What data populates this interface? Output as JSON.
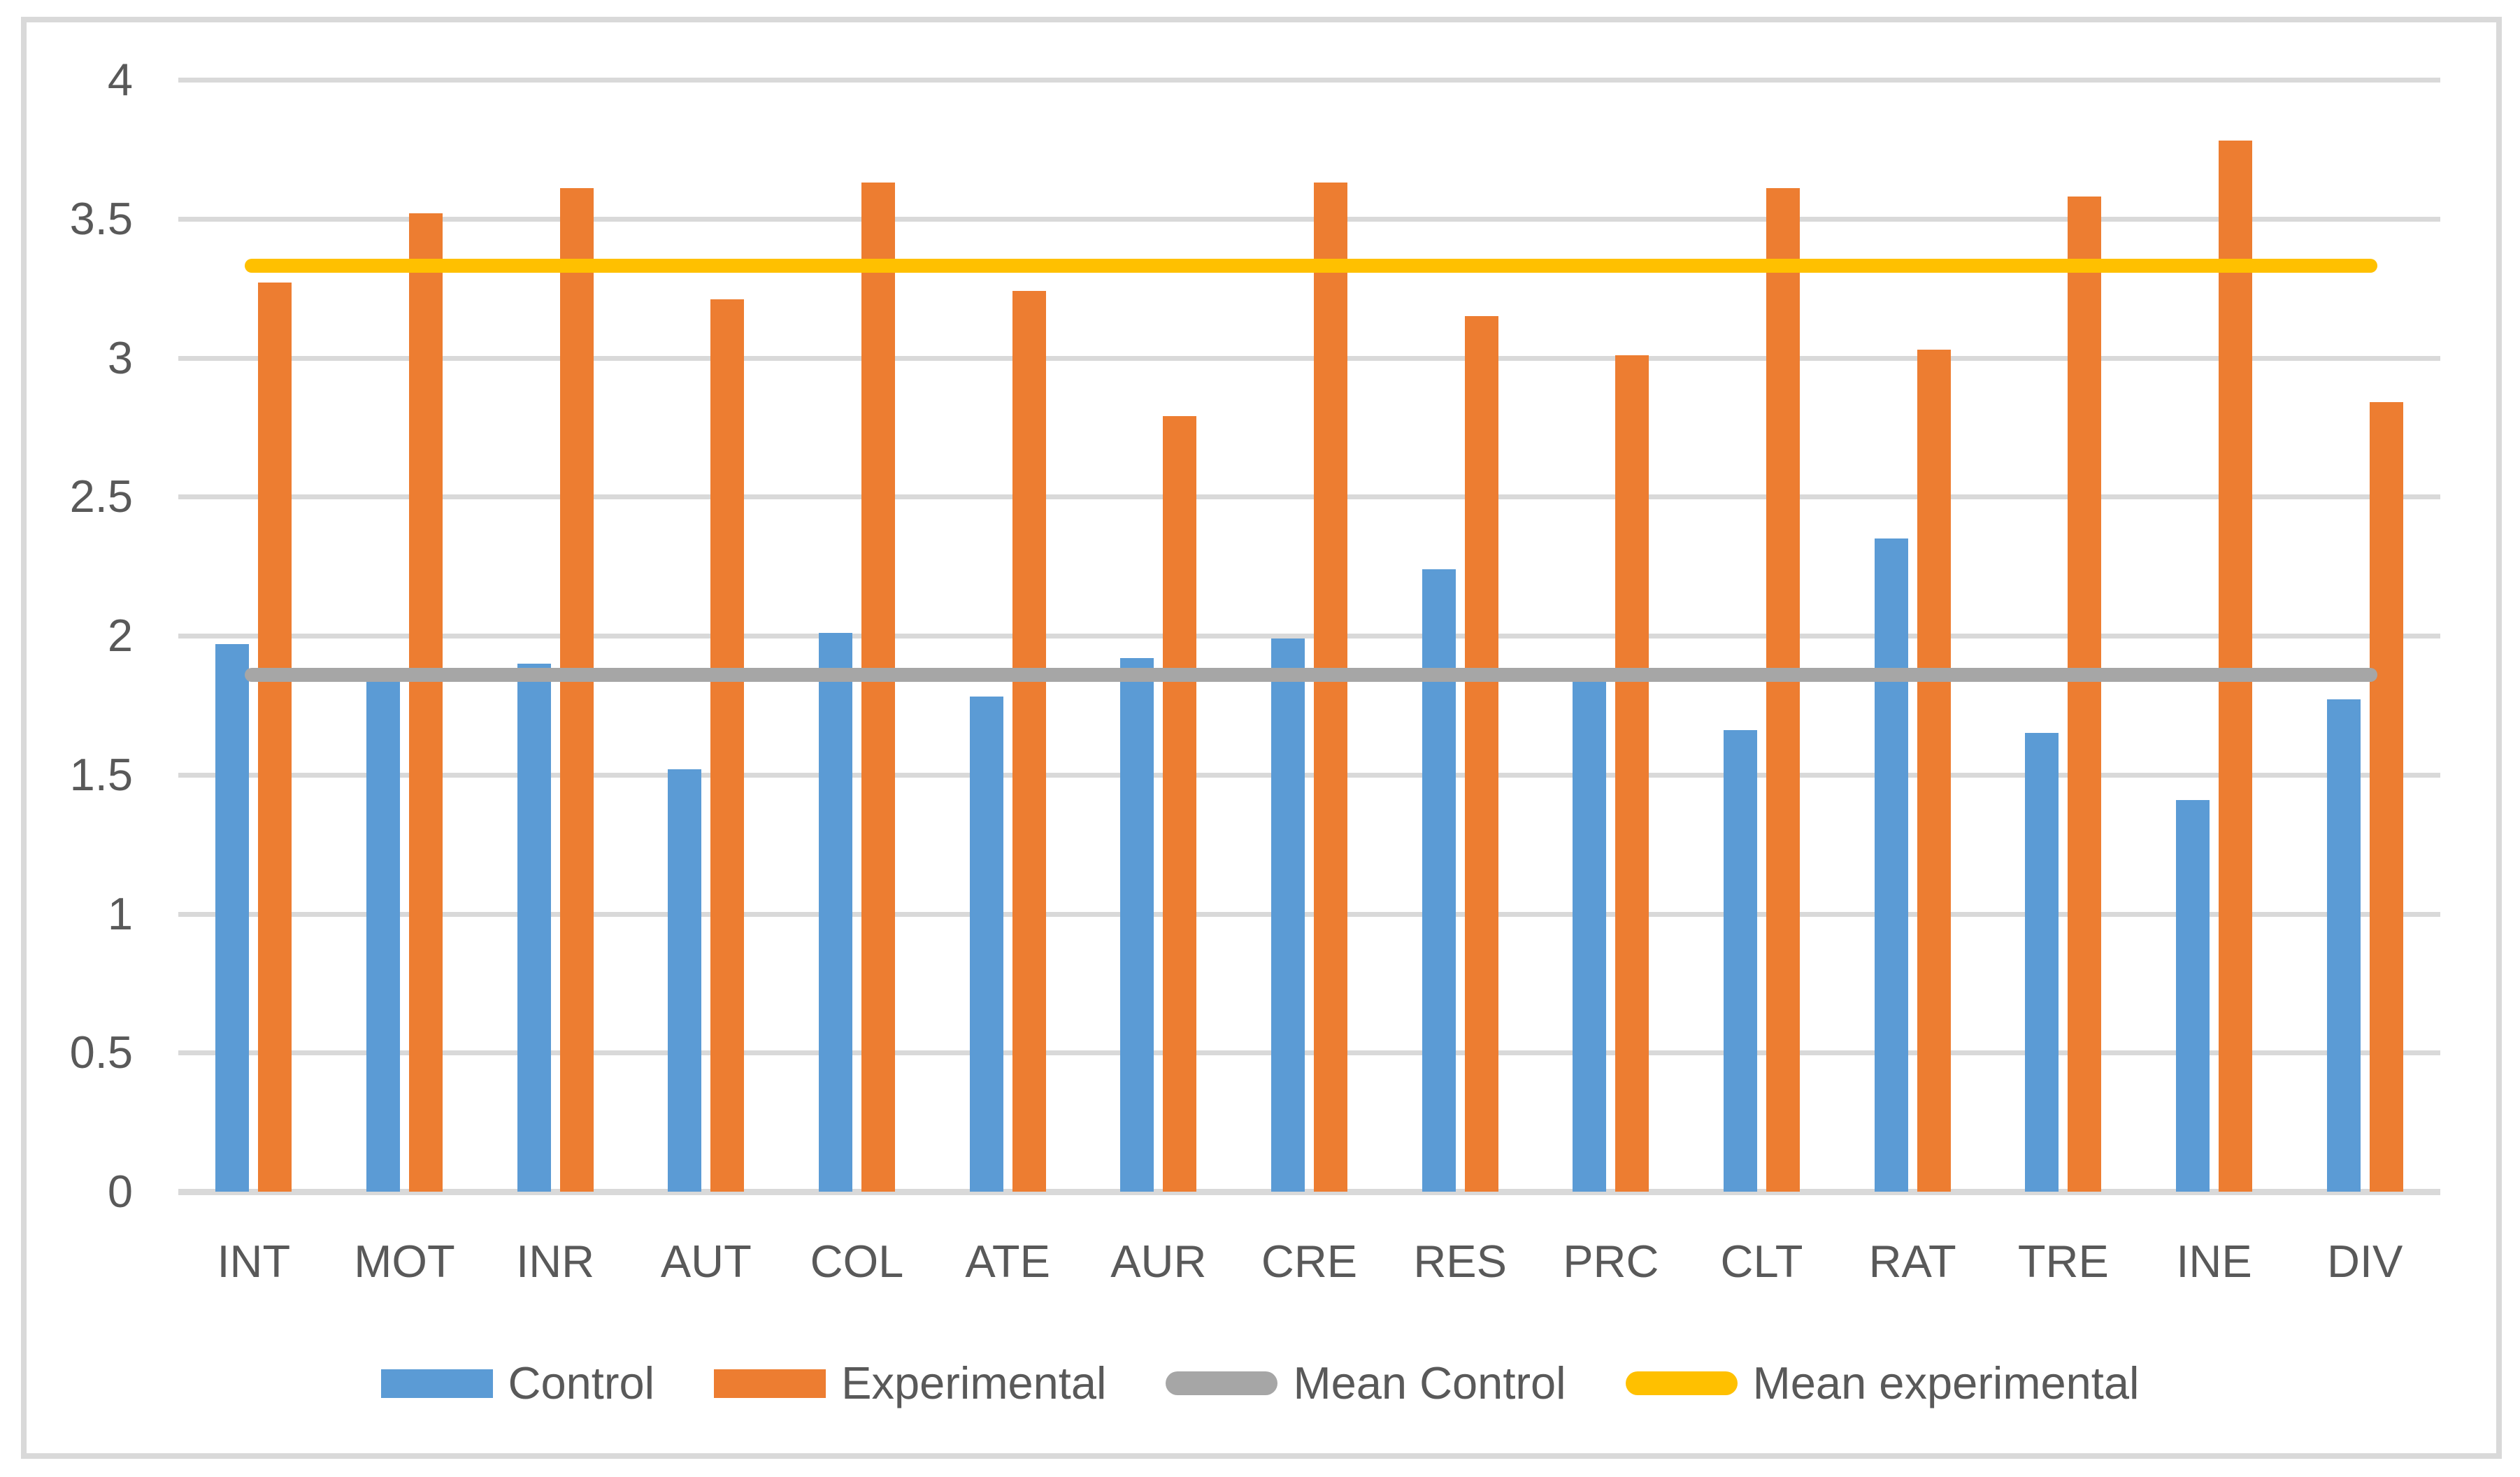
{
  "chart_data": {
    "type": "bar",
    "categories": [
      "INT",
      "MOT",
      "INR",
      "AUT",
      "COL",
      "ATE",
      "AUR",
      "CRE",
      "RES",
      "PRC",
      "CLT",
      "RAT",
      "TRE",
      "INE",
      "DIV"
    ],
    "series": [
      {
        "name": "Control",
        "type": "bar",
        "color": "#5B9BD5",
        "values": [
          1.97,
          1.85,
          1.9,
          1.52,
          2.01,
          1.78,
          1.92,
          1.99,
          2.24,
          1.88,
          1.66,
          2.35,
          1.65,
          1.41,
          1.77
        ]
      },
      {
        "name": "Experimental",
        "type": "bar",
        "color": "#ED7D31",
        "values": [
          3.27,
          3.52,
          3.61,
          3.21,
          3.63,
          3.24,
          2.79,
          3.63,
          3.15,
          3.01,
          3.61,
          3.03,
          3.58,
          3.78,
          2.84
        ]
      },
      {
        "name": "Mean Control",
        "type": "mean-line",
        "color": "#A6A6A6",
        "value": 1.86
      },
      {
        "name": "Mean experimental",
        "type": "mean-line",
        "color": "#FFC000",
        "value": 3.33
      }
    ],
    "ylim": [
      0,
      4
    ],
    "y_ticks": [
      "0",
      "0.5",
      "1",
      "1.5",
      "2",
      "2.5",
      "3",
      "3.5",
      "4"
    ],
    "grid": true,
    "legend_position": "bottom"
  },
  "legend": {
    "items": [
      {
        "label": "Control"
      },
      {
        "label": "Experimental"
      },
      {
        "label": "Mean Control"
      },
      {
        "label": "Mean experimental"
      }
    ]
  },
  "colors": {
    "background": "#FFFFFF",
    "gridline": "#D9D9D9",
    "axis_label": "#595959",
    "chart_border": "#D9D9D9"
  }
}
